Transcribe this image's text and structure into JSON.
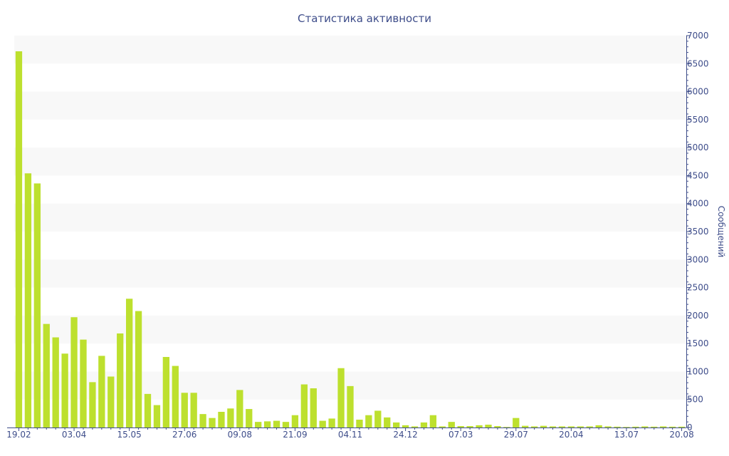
{
  "chart_data": {
    "type": "bar",
    "title": "Статистика активности",
    "ylabel": "Сообщений",
    "xlabel": "",
    "ylim": [
      0,
      7000
    ],
    "yticks": [
      0,
      500,
      1000,
      1500,
      2000,
      2500,
      3000,
      3500,
      4000,
      4500,
      5000,
      5500,
      6000,
      6500,
      7000
    ],
    "x_tick_labels": [
      "19.02",
      "03.04",
      "15.05",
      "27.06",
      "09.08",
      "21.09",
      "04.11",
      "24.12",
      "07.03",
      "29.07",
      "20.04",
      "13.07",
      "20.08"
    ],
    "grid": true,
    "colors": {
      "bar": "#bde02e",
      "text": "#3e4d8a",
      "band": "#f8f8f8",
      "axis": "#3e4d8a"
    },
    "series": [
      {
        "values": [
          6720,
          4540,
          4360,
          1850,
          1610,
          1320,
          1970,
          1570,
          810,
          1280,
          910,
          1680,
          2300,
          2080,
          600,
          400,
          1260,
          1100,
          620,
          620,
          240,
          170,
          280,
          340,
          670,
          330,
          100,
          110,
          120,
          100,
          220,
          770,
          700,
          120,
          160,
          1060,
          740,
          140,
          220,
          300,
          180,
          90,
          40,
          20,
          90,
          220,
          20,
          100,
          25,
          25,
          40,
          50,
          25,
          10,
          170,
          30,
          20,
          30,
          20,
          20,
          20,
          20,
          20,
          40,
          20,
          15,
          10,
          15,
          20,
          15,
          20,
          15,
          15
        ]
      }
    ]
  }
}
